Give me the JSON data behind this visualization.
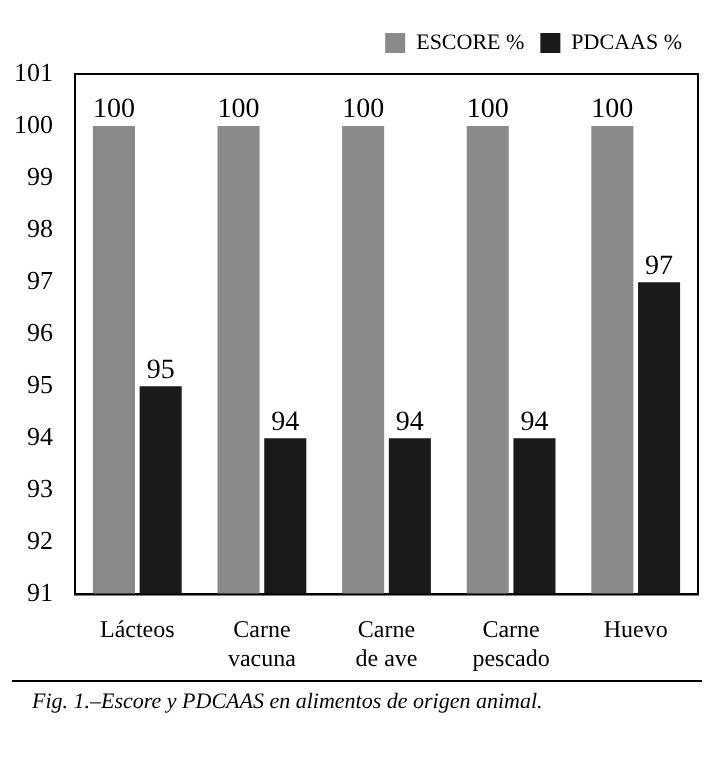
{
  "chart_data": {
    "type": "bar",
    "categories": [
      "Lácteos",
      "Carne vacuna",
      "Carne de ave",
      "Carne pescado",
      "Huevo"
    ],
    "series": [
      {
        "name": "ESCORE %",
        "color": "#8a8a8a",
        "values": [
          100,
          100,
          100,
          100,
          100
        ]
      },
      {
        "name": "PDCAAS %",
        "color": "#1a1a1a",
        "values": [
          95,
          94,
          94,
          94,
          97
        ]
      }
    ],
    "ylim": [
      91,
      101
    ],
    "yticks": [
      91,
      92,
      93,
      94,
      95,
      96,
      97,
      98,
      99,
      100,
      101
    ],
    "grid": false,
    "legend": "top right",
    "data_labels": true,
    "annotations": [
      "Fig. 1.–Escore y PDCAAS en alimentos de origen animal."
    ]
  }
}
